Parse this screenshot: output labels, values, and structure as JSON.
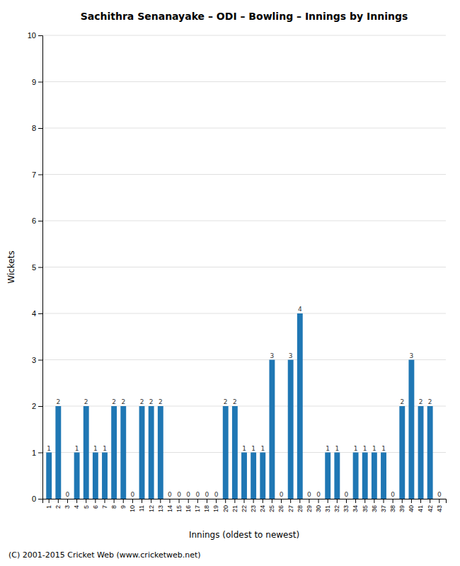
{
  "chart_data": {
    "type": "bar",
    "title": "Sachithra Senanayake – ODI – Bowling – Innings by Innings",
    "xlabel": "Innings (oldest to newest)",
    "ylabel": "Wickets",
    "footer": "(C) 2001-2015 Cricket Web (www.cricketweb.net)",
    "categories": [
      "1",
      "2",
      "3",
      "4",
      "5",
      "6",
      "7",
      "8",
      "9",
      "10",
      "11",
      "12",
      "13",
      "14",
      "15",
      "16",
      "17",
      "18",
      "19",
      "20",
      "21",
      "22",
      "23",
      "24",
      "25",
      "26",
      "27",
      "28",
      "29",
      "30",
      "31",
      "32",
      "33",
      "34",
      "35",
      "36",
      "37",
      "38",
      "39",
      "40",
      "41",
      "42",
      "43"
    ],
    "values": [
      1,
      2,
      0,
      1,
      2,
      1,
      1,
      2,
      2,
      0,
      2,
      2,
      2,
      0,
      0,
      0,
      0,
      0,
      0,
      2,
      2,
      1,
      1,
      1,
      3,
      0,
      3,
      4,
      0,
      0,
      1,
      1,
      0,
      1,
      1,
      1,
      1,
      0,
      2,
      3,
      2,
      2,
      0
    ],
    "ylim": [
      0,
      10
    ],
    "yticks": [
      0,
      1,
      2,
      3,
      4,
      5,
      6,
      7,
      8,
      9,
      10
    ],
    "grid": true,
    "data_labels": true
  }
}
